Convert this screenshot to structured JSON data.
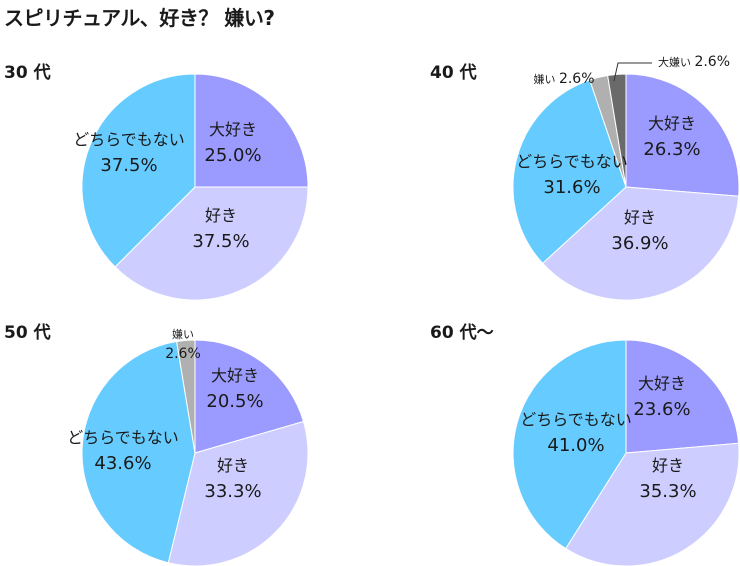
{
  "title": "スピリチュアル、好き？ 嫌い?",
  "colors": {
    "大好き": "#9b9bff",
    "好き": "#cdcdff",
    "どちらでもない": "#66ccff",
    "嫌い": "#b0b0b0",
    "大嫌い": "#6a6a6a"
  },
  "chart_data": [
    {
      "type": "pie",
      "title": "30 代",
      "slices": [
        {
          "label": "大好き",
          "value": 25.0,
          "display": "25.0%"
        },
        {
          "label": "好き",
          "value": 37.5,
          "display": "37.5%"
        },
        {
          "label": "どちらでもない",
          "value": 37.5,
          "display": "37.5%"
        }
      ]
    },
    {
      "type": "pie",
      "title": "40 代",
      "slices": [
        {
          "label": "大好き",
          "value": 26.3,
          "display": "26.3%"
        },
        {
          "label": "好き",
          "value": 36.9,
          "display": "36.9%"
        },
        {
          "label": "どちらでもない",
          "value": 31.6,
          "display": "31.6%"
        },
        {
          "label": "嫌い",
          "value": 2.6,
          "display": "2.6%"
        },
        {
          "label": "大嫌い",
          "value": 2.6,
          "display": "2.6%"
        }
      ]
    },
    {
      "type": "pie",
      "title": "50 代",
      "slices": [
        {
          "label": "大好き",
          "value": 20.5,
          "display": "20.5%"
        },
        {
          "label": "好き",
          "value": 33.3,
          "display": "33.3%"
        },
        {
          "label": "どちらでもない",
          "value": 43.6,
          "display": "43.6%"
        },
        {
          "label": "嫌い",
          "value": 2.6,
          "display": "2.6%"
        }
      ]
    },
    {
      "type": "pie",
      "title": "60 代～",
      "slices": [
        {
          "label": "大好き",
          "value": 23.6,
          "display": "23.6%"
        },
        {
          "label": "好き",
          "value": 35.3,
          "display": "35.3%"
        },
        {
          "label": "どちらでもない",
          "value": 41.0,
          "display": "41.0%"
        }
      ]
    }
  ]
}
